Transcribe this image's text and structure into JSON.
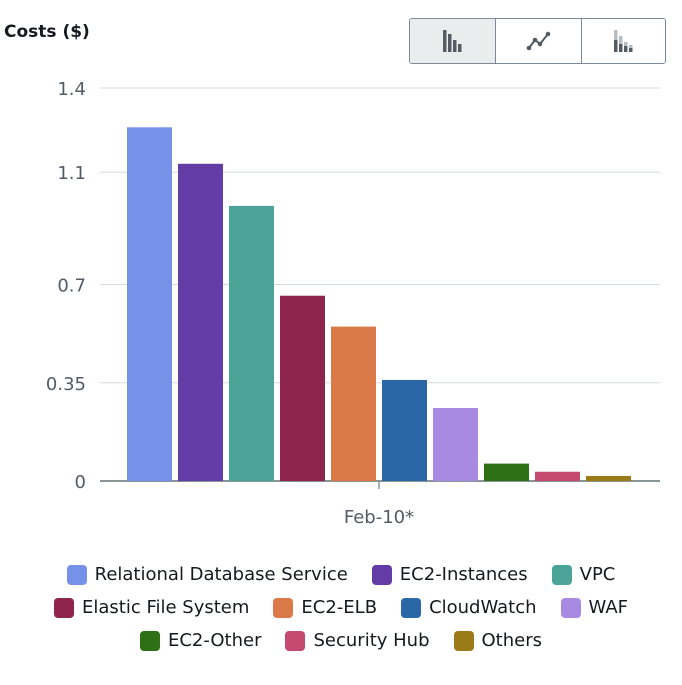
{
  "chart_data": {
    "type": "bar",
    "title": "Costs ($)",
    "categories": [
      "Feb-10*"
    ],
    "yticks": [
      "1.4",
      "1.1",
      "0.7",
      "0.35",
      "0"
    ],
    "ylim": [
      0,
      1.4
    ],
    "grid": true,
    "legend_position": "bottom",
    "series": [
      {
        "name": "Relational Database Service",
        "values": [
          1.26
        ],
        "color": "#7591e8"
      },
      {
        "name": "EC2-Instances",
        "values": [
          1.13
        ],
        "color": "#633ca6"
      },
      {
        "name": "VPC",
        "values": [
          0.98
        ],
        "color": "#4ca499"
      },
      {
        "name": "Elastic File System",
        "values": [
          0.66
        ],
        "color": "#8c244b"
      },
      {
        "name": "EC2-ELB",
        "values": [
          0.55
        ],
        "color": "#d97a48"
      },
      {
        "name": "CloudWatch",
        "values": [
          0.36
        ],
        "color": "#2b67a6"
      },
      {
        "name": "WAF",
        "values": [
          0.26
        ],
        "color": "#a98ae2"
      },
      {
        "name": "EC2-Other",
        "values": [
          0.062
        ],
        "color": "#2d7016"
      },
      {
        "name": "Security Hub",
        "values": [
          0.033
        ],
        "color": "#c64a6f"
      },
      {
        "name": "Others",
        "values": [
          0.018
        ],
        "color": "#9a7b18"
      }
    ]
  },
  "toolbar": {
    "buttons": [
      {
        "icon": "bar-chart-icon",
        "active": true
      },
      {
        "icon": "line-chart-icon",
        "active": false
      },
      {
        "icon": "stacked-bar-chart-icon",
        "active": false
      }
    ]
  }
}
